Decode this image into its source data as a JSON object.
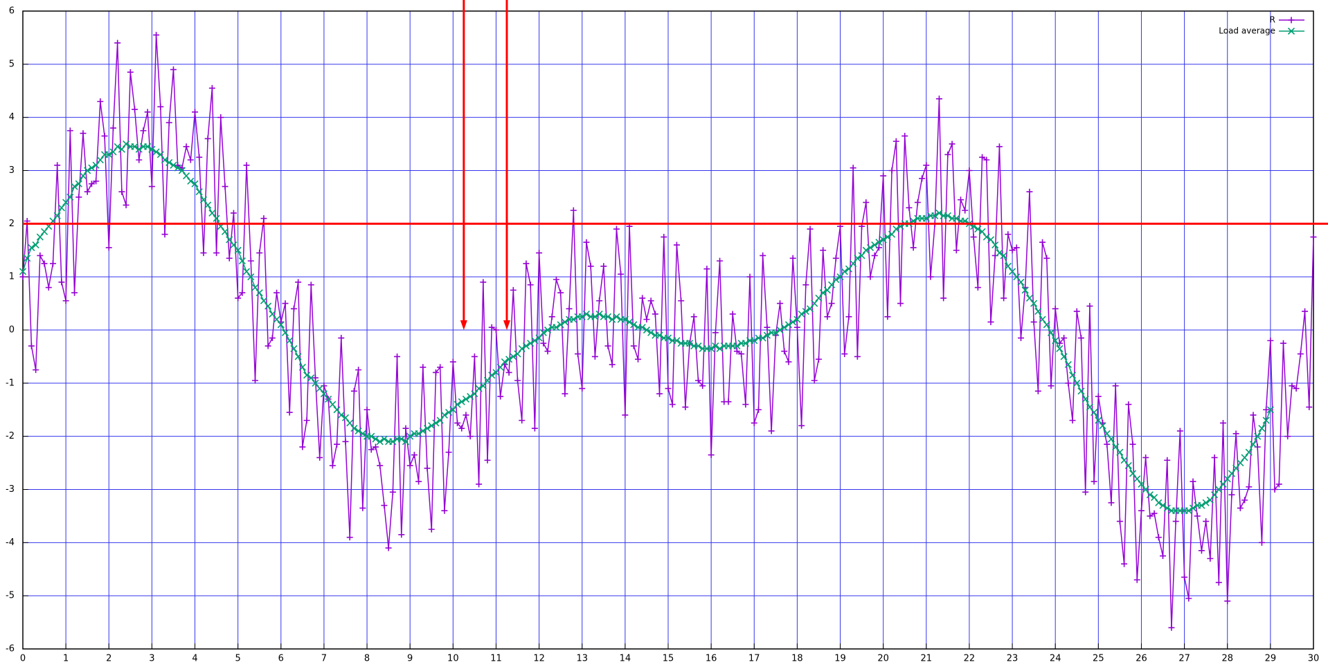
{
  "chart_data": {
    "type": "line",
    "x": [
      0,
      0.1,
      0.2,
      0.3,
      0.4,
      0.5,
      0.6,
      0.7,
      0.8,
      0.9,
      1,
      1.1,
      1.2,
      1.3,
      1.4,
      1.5,
      1.6,
      1.7,
      1.8,
      1.9,
      2,
      2.1,
      2.2,
      2.3,
      2.4,
      2.5,
      2.6,
      2.7,
      2.8,
      2.9,
      3,
      3.1,
      3.2,
      3.3,
      3.4,
      3.5,
      3.6,
      3.7,
      3.8,
      3.9,
      4,
      4.1,
      4.2,
      4.3,
      4.4,
      4.5,
      4.6,
      4.7,
      4.8,
      4.9,
      5,
      5.1,
      5.2,
      5.3,
      5.4,
      5.5,
      5.6,
      5.7,
      5.8,
      5.9,
      6,
      6.1,
      6.2,
      6.3,
      6.4,
      6.5,
      6.6,
      6.7,
      6.8,
      6.9,
      7,
      7.1,
      7.2,
      7.3,
      7.4,
      7.5,
      7.6,
      7.7,
      7.8,
      7.9,
      8,
      8.1,
      8.2,
      8.3,
      8.4,
      8.5,
      8.6,
      8.7,
      8.8,
      8.9,
      9,
      9.1,
      9.2,
      9.3,
      9.4,
      9.5,
      9.6,
      9.7,
      9.8,
      9.9,
      10,
      10.1,
      10.2,
      10.3,
      10.4,
      10.5,
      10.6,
      10.7,
      10.8,
      10.9,
      11,
      11.1,
      11.2,
      11.3,
      11.4,
      11.5,
      11.6,
      11.7,
      11.8,
      11.9,
      12,
      12.1,
      12.2,
      12.3,
      12.4,
      12.5,
      12.6,
      12.7,
      12.8,
      12.9,
      13,
      13.1,
      13.2,
      13.3,
      13.4,
      13.5,
      13.6,
      13.7,
      13.8,
      13.9,
      14,
      14.1,
      14.2,
      14.3,
      14.4,
      14.5,
      14.6,
      14.7,
      14.8,
      14.9,
      15,
      15.1,
      15.2,
      15.3,
      15.4,
      15.5,
      15.6,
      15.7,
      15.8,
      15.9,
      16,
      16.1,
      16.2,
      16.3,
      16.4,
      16.5,
      16.6,
      16.7,
      16.8,
      16.9,
      17,
      17.1,
      17.2,
      17.3,
      17.4,
      17.5,
      17.6,
      17.7,
      17.8,
      17.9,
      18,
      18.1,
      18.2,
      18.3,
      18.4,
      18.5,
      18.6,
      18.7,
      18.8,
      18.9,
      19,
      19.1,
      19.2,
      19.3,
      19.4,
      19.5,
      19.6,
      19.7,
      19.8,
      19.9,
      20,
      20.1,
      20.2,
      20.3,
      20.4,
      20.5,
      20.6,
      20.7,
      20.8,
      20.9,
      21,
      21.1,
      21.2,
      21.3,
      21.4,
      21.5,
      21.6,
      21.7,
      21.8,
      21.9,
      22,
      22.1,
      22.2,
      22.3,
      22.4,
      22.5,
      22.6,
      22.7,
      22.8,
      22.9,
      23,
      23.1,
      23.2,
      23.3,
      23.4,
      23.5,
      23.6,
      23.7,
      23.8,
      23.9,
      24,
      24.1,
      24.2,
      24.3,
      24.4,
      24.5,
      24.6,
      24.7,
      24.8,
      24.9,
      25,
      25.1,
      25.2,
      25.3,
      25.4,
      25.5,
      25.6,
      25.7,
      25.8,
      25.9,
      26,
      26.1,
      26.2,
      26.3,
      26.4,
      26.5,
      26.6,
      26.7,
      26.8,
      26.9,
      27,
      27.1,
      27.2,
      27.3,
      27.4,
      27.5,
      27.6,
      27.7,
      27.8,
      27.9,
      28,
      28.1,
      28.2,
      28.3,
      28.4,
      28.5,
      28.6,
      28.7,
      28.8,
      28.9,
      29,
      29.1,
      29.2,
      29.3,
      29.4,
      29.5,
      29.6,
      29.7,
      29.8,
      29.9,
      30
    ],
    "series": [
      {
        "name": "R",
        "color": "#9400d3",
        "marker": "plus",
        "values": [
          1.0,
          2.05,
          -0.3,
          -0.75,
          1.4,
          1.25,
          0.8,
          1.25,
          3.1,
          0.9,
          0.55,
          3.75,
          0.7,
          2.5,
          3.7,
          2.6,
          2.75,
          2.8,
          4.3,
          3.65,
          1.55,
          3.8,
          5.4,
          2.6,
          2.35,
          4.85,
          4.15,
          3.2,
          3.75,
          4.1,
          2.7,
          5.55,
          4.2,
          1.8,
          3.9,
          4.9,
          3.1,
          3.05,
          3.45,
          3.2,
          4.1,
          3.25,
          1.45,
          3.6,
          4.55,
          1.45,
          4.0,
          2.7,
          1.35,
          2.2,
          0.6,
          0.7,
          3.1,
          1.3,
          -0.95,
          1.45,
          2.1,
          -0.3,
          -0.15,
          0.7,
          0.15,
          0.5,
          -1.55,
          0.4,
          0.9,
          -2.2,
          -1.7,
          0.85,
          -0.9,
          -2.4,
          -1.05,
          -1.3,
          -2.55,
          -2.15,
          -0.15,
          -2.1,
          -3.9,
          -1.15,
          -0.75,
          -3.35,
          -1.5,
          -2.25,
          -2.2,
          -2.55,
          -3.3,
          -4.1,
          -3.05,
          -0.5,
          -3.85,
          -1.85,
          -2.55,
          -2.35,
          -2.85,
          -0.7,
          -2.6,
          -3.75,
          -0.8,
          -0.7,
          -3.4,
          -2.3,
          -0.6,
          -1.75,
          -1.85,
          -1.6,
          -2.0,
          -0.5,
          -2.9,
          0.9,
          -2.45,
          0.05,
          0.0,
          -1.25,
          -0.65,
          -0.8,
          0.75,
          -0.95,
          -1.7,
          1.25,
          0.85,
          -1.85,
          1.45,
          -0.25,
          -0.4,
          0.25,
          0.95,
          0.7,
          -1.2,
          0.4,
          2.25,
          -0.45,
          -1.1,
          1.65,
          1.2,
          -0.5,
          0.55,
          1.2,
          -0.3,
          -0.65,
          1.9,
          1.05,
          -1.6,
          1.95,
          -0.3,
          -0.55,
          0.6,
          0.2,
          0.55,
          0.3,
          -1.2,
          1.75,
          -1.1,
          -1.4,
          1.6,
          0.55,
          -1.45,
          -0.25,
          0.25,
          -0.95,
          -1.05,
          1.15,
          -2.35,
          -0.05,
          1.3,
          -1.35,
          -1.35,
          0.3,
          -0.4,
          -0.45,
          -1.4,
          1.0,
          -1.75,
          -1.5,
          1.4,
          0.05,
          -1.9,
          -0.1,
          0.5,
          -0.4,
          -0.6,
          1.35,
          0.05,
          -1.8,
          0.85,
          1.9,
          -0.95,
          -0.55,
          1.5,
          0.25,
          0.5,
          1.35,
          1.95,
          -0.45,
          0.25,
          3.05,
          -0.5,
          1.95,
          2.4,
          1.0,
          1.4,
          1.55,
          2.9,
          0.25,
          3.0,
          3.55,
          0.5,
          3.65,
          2.3,
          1.55,
          2.4,
          2.85,
          3.1,
          1.0,
          2.0,
          4.35,
          0.6,
          3.3,
          3.5,
          1.5,
          2.45,
          2.25,
          3.0,
          1.75,
          0.8,
          3.25,
          3.2,
          0.15,
          1.4,
          3.45,
          0.6,
          1.8,
          1.5,
          1.55,
          -0.15,
          0.8,
          2.6,
          0.15,
          -1.15,
          1.65,
          1.35,
          -1.05,
          0.4,
          -0.25,
          -0.15,
          -1.0,
          -1.7,
          0.35,
          -0.15,
          -3.05,
          0.45,
          -2.85,
          -1.25,
          -1.75,
          -2.15,
          -3.25,
          -1.05,
          -3.6,
          -4.4,
          -1.4,
          -2.15,
          -4.7,
          -3.4,
          -2.4,
          -3.5,
          -3.45,
          -3.9,
          -4.25,
          -2.45,
          -5.6,
          -3.6,
          -1.9,
          -4.65,
          -5.05,
          -2.85,
          -3.5,
          -4.15,
          -3.6,
          -4.3,
          -2.4,
          -4.75,
          -1.75,
          -5.1,
          -3.1,
          -1.95,
          -3.35,
          -3.2,
          -2.95,
          -1.6,
          -2.2,
          -4.0,
          -1.5,
          -0.2,
          -3.0,
          -2.9,
          -0.25,
          -2.0,
          -1.05,
          -1.1,
          -0.45,
          0.35,
          -1.45,
          1.75
        ]
      },
      {
        "name": "Load average",
        "color": "#009e73",
        "marker": "cross",
        "values": [
          1.1,
          1.35,
          1.55,
          1.6,
          1.75,
          1.85,
          1.95,
          2.05,
          2.15,
          2.3,
          2.4,
          2.5,
          2.7,
          2.75,
          2.9,
          3.0,
          3.05,
          3.1,
          3.2,
          3.3,
          3.3,
          3.35,
          3.45,
          3.4,
          3.5,
          3.45,
          3.45,
          3.4,
          3.45,
          3.45,
          3.4,
          3.35,
          3.3,
          3.2,
          3.15,
          3.1,
          3.05,
          3.0,
          2.9,
          2.8,
          2.75,
          2.6,
          2.45,
          2.35,
          2.2,
          2.1,
          1.95,
          1.85,
          1.7,
          1.6,
          1.5,
          1.3,
          1.1,
          1.0,
          0.8,
          0.7,
          0.55,
          0.45,
          0.3,
          0.2,
          0.1,
          -0.05,
          -0.2,
          -0.35,
          -0.5,
          -0.7,
          -0.85,
          -0.9,
          -1.0,
          -1.1,
          -1.2,
          -1.3,
          -1.4,
          -1.5,
          -1.6,
          -1.65,
          -1.75,
          -1.85,
          -1.9,
          -1.95,
          -2.0,
          -2.0,
          -2.05,
          -2.1,
          -2.05,
          -2.1,
          -2.1,
          -2.05,
          -2.05,
          -2.1,
          -2.0,
          -1.95,
          -1.95,
          -1.9,
          -1.85,
          -1.8,
          -1.75,
          -1.7,
          -1.6,
          -1.55,
          -1.5,
          -1.4,
          -1.35,
          -1.3,
          -1.25,
          -1.2,
          -1.1,
          -1.05,
          -0.95,
          -0.85,
          -0.8,
          -0.7,
          -0.6,
          -0.55,
          -0.5,
          -0.45,
          -0.35,
          -0.3,
          -0.25,
          -0.2,
          -0.15,
          -0.05,
          0.0,
          0.05,
          0.05,
          0.1,
          0.15,
          0.2,
          0.2,
          0.25,
          0.25,
          0.3,
          0.25,
          0.25,
          0.3,
          0.25,
          0.25,
          0.2,
          0.25,
          0.2,
          0.2,
          0.15,
          0.1,
          0.05,
          0.05,
          0.0,
          -0.05,
          -0.1,
          -0.1,
          -0.15,
          -0.15,
          -0.2,
          -0.2,
          -0.25,
          -0.25,
          -0.25,
          -0.3,
          -0.3,
          -0.35,
          -0.35,
          -0.35,
          -0.3,
          -0.35,
          -0.3,
          -0.3,
          -0.3,
          -0.3,
          -0.25,
          -0.25,
          -0.2,
          -0.2,
          -0.15,
          -0.15,
          -0.1,
          -0.05,
          -0.05,
          0.0,
          0.05,
          0.1,
          0.15,
          0.2,
          0.3,
          0.35,
          0.4,
          0.5,
          0.6,
          0.7,
          0.75,
          0.85,
          0.95,
          1.0,
          1.1,
          1.15,
          1.25,
          1.35,
          1.4,
          1.5,
          1.55,
          1.6,
          1.65,
          1.7,
          1.75,
          1.8,
          1.9,
          1.95,
          2.0,
          2.0,
          2.05,
          2.1,
          2.1,
          2.1,
          2.15,
          2.15,
          2.2,
          2.15,
          2.15,
          2.1,
          2.1,
          2.05,
          2.05,
          2.0,
          1.95,
          1.9,
          1.85,
          1.75,
          1.7,
          1.6,
          1.45,
          1.4,
          1.2,
          1.1,
          1.0,
          0.9,
          0.75,
          0.6,
          0.5,
          0.35,
          0.2,
          0.1,
          -0.05,
          -0.2,
          -0.35,
          -0.5,
          -0.65,
          -0.85,
          -1.0,
          -1.15,
          -1.3,
          -1.45,
          -1.55,
          -1.7,
          -1.8,
          -1.95,
          -2.05,
          -2.2,
          -2.3,
          -2.45,
          -2.55,
          -2.7,
          -2.8,
          -2.9,
          -3.0,
          -3.1,
          -3.15,
          -3.25,
          -3.3,
          -3.35,
          -3.4,
          -3.4,
          -3.4,
          -3.4,
          -3.4,
          -3.35,
          -3.3,
          -3.3,
          -3.25,
          -3.2,
          -3.1,
          -3.0,
          -2.9,
          -2.8,
          -2.7,
          -2.6,
          -2.5,
          -2.4,
          -2.3,
          -2.15,
          -2.0,
          -1.85,
          -1.7,
          -1.5,
          null,
          null,
          null,
          null,
          null,
          null,
          null,
          null,
          null,
          null
        ]
      }
    ],
    "xlim": [
      0,
      30
    ],
    "xticks": [
      0,
      1,
      2,
      3,
      4,
      5,
      6,
      7,
      8,
      9,
      10,
      11,
      12,
      13,
      14,
      15,
      16,
      17,
      18,
      19,
      20,
      21,
      22,
      23,
      24,
      25,
      26,
      27,
      28,
      29,
      30
    ],
    "ylim": [
      -6,
      6
    ],
    "yticks": [
      -6,
      -5,
      -4,
      -3,
      -2,
      -1,
      0,
      1,
      2,
      3,
      4,
      5,
      6
    ],
    "grid": true,
    "grid_color": "#3333ee",
    "legend": "top-right",
    "hline": {
      "y": 2,
      "color": "#ff0000"
    },
    "arrows": [
      {
        "x": 10.25,
        "y": 0,
        "color": "#ff0000"
      },
      {
        "x": 11.25,
        "y": 0,
        "color": "#ff0000"
      }
    ]
  }
}
